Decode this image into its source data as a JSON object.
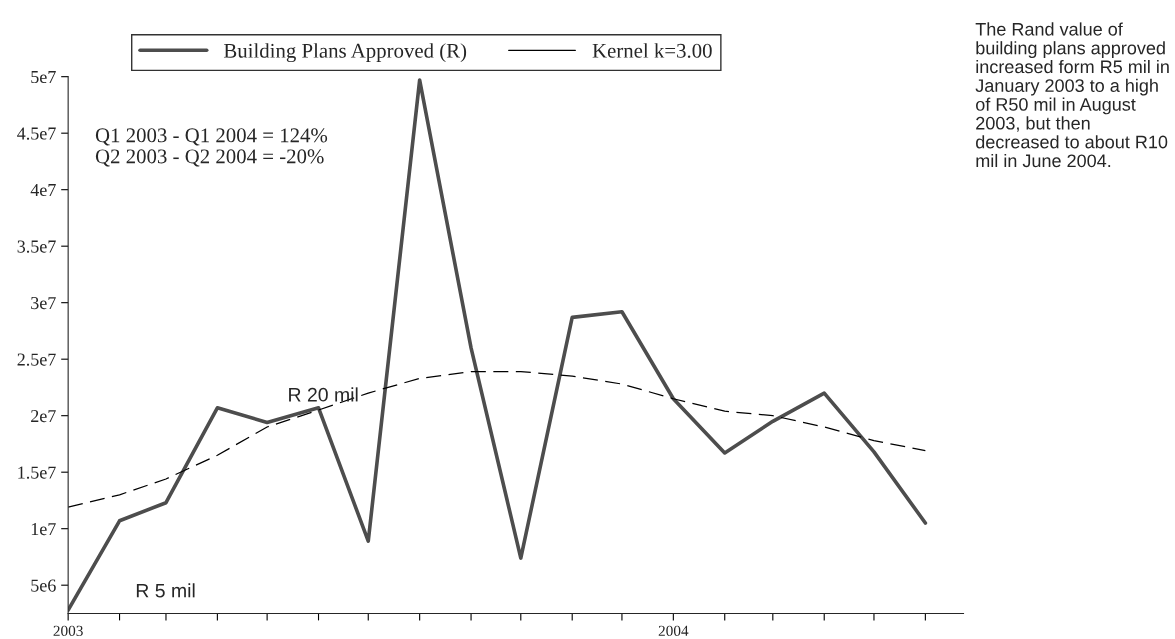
{
  "chart_data": {
    "type": "line",
    "x": [
      "2003-01",
      "2003-02",
      "2003-03",
      "2003-04",
      "2003-05",
      "2003-06",
      "2003-07",
      "2003-08",
      "2003-09",
      "2003-10",
      "2003-11",
      "2003-12",
      "2004-01",
      "2004-02",
      "2004-03",
      "2004-04",
      "2004-05",
      "2004-06"
    ],
    "series": [
      {
        "name": "Building Plans Approved (R)",
        "color": "#4d4d4d",
        "line_style": "solid",
        "values": [
          2800000.0,
          10700000.0,
          12300000.0,
          20700000.0,
          19400000.0,
          20700000.0,
          8900000.0,
          49700000.0,
          26000000.0,
          7400000.0,
          28700000.0,
          29200000.0,
          21500000.0,
          16700000.0,
          19500000.0,
          22000000.0,
          16800000.0,
          10500000.0
        ]
      },
      {
        "name": "Kernel k=3.00",
        "color": "#000000",
        "line_style": "dashed",
        "values": [
          11900000.0,
          13000000.0,
          14400000.0,
          16500000.0,
          19000000.0,
          20500000.0,
          22000000.0,
          23300000.0,
          23900000.0,
          23900000.0,
          23500000.0,
          22800000.0,
          21500000.0,
          20400000.0,
          20000000.0,
          19000000.0,
          17800000.0,
          16900000.0
        ]
      }
    ],
    "xlim": [
      "2003-01-01",
      "2004-06-24"
    ],
    "xticks": [
      {
        "value": "2003-01",
        "label": "2003"
      },
      {
        "value": "2003-02",
        "label": null
      },
      {
        "value": "2003-03",
        "label": null
      },
      {
        "value": "2003-04",
        "label": null
      },
      {
        "value": "2003-05",
        "label": null
      },
      {
        "value": "2003-06",
        "label": null
      },
      {
        "value": "2003-07",
        "label": null
      },
      {
        "value": "2003-08",
        "label": null
      },
      {
        "value": "2003-09",
        "label": null
      },
      {
        "value": "2003-10",
        "label": null
      },
      {
        "value": "2003-11",
        "label": null
      },
      {
        "value": "2003-12",
        "label": null
      },
      {
        "value": "2004-01",
        "label": "2004"
      },
      {
        "value": "2004-02",
        "label": null
      },
      {
        "value": "2004-03",
        "label": null
      },
      {
        "value": "2004-04",
        "label": null
      },
      {
        "value": "2004-05",
        "label": null
      },
      {
        "value": "2004-06",
        "label": null
      }
    ],
    "ylim": [
      2500000.0,
      50000000.0
    ],
    "yticks": [
      {
        "value": 5000000.0,
        "label": "5e6"
      },
      {
        "value": 10000000.0,
        "label": "1e7"
      },
      {
        "value": 15000000.0,
        "label": "1.5e7"
      },
      {
        "value": 20000000.0,
        "label": "2e7"
      },
      {
        "value": 25000000.0,
        "label": "2.5e7"
      },
      {
        "value": 30000000.0,
        "label": "3e7"
      },
      {
        "value": 35000000.0,
        "label": "3.5e7"
      },
      {
        "value": 40000000.0,
        "label": "4e7"
      },
      {
        "value": 45000000.0,
        "label": "4.5e7"
      },
      {
        "value": 50000000.0,
        "label": "5e7"
      }
    ],
    "legend": "top",
    "grid": false,
    "annotations": [
      "Q1 2003 - Q1 2004 = 124%\nQ2 2003 - Q2 2004 = -20%",
      "R 20 mil",
      "R 5 mil",
      "The Rand value of building plans approved increased form R5 mil in January 2003 to a high of R50 mil in August 2003, but then decreased to about R10 mil in June 2004."
    ]
  }
}
